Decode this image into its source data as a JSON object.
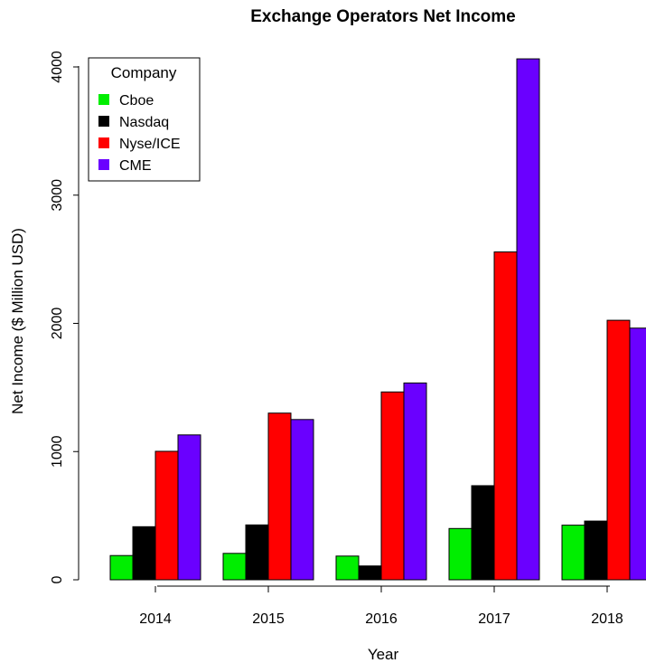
{
  "chart_data": {
    "type": "bar",
    "title": "Exchange Operators Net Income",
    "xlabel": "Year",
    "ylabel": "Net Income ($ Million USD)",
    "categories": [
      "2014",
      "2015",
      "2016",
      "2017",
      "2018"
    ],
    "ylim": [
      0,
      4100
    ],
    "yticks": [
      0,
      1000,
      2000,
      3000,
      4000
    ],
    "grid": false,
    "legend": {
      "title": "Company",
      "placement": "top-left"
    },
    "series": [
      {
        "name": "Cboe",
        "color": "#00ee00",
        "values": [
          189,
          206,
          185,
          400,
          426
        ]
      },
      {
        "name": "Nasdaq",
        "color": "#000000",
        "values": [
          414,
          428,
          108,
          734,
          458
        ]
      },
      {
        "name": "Nyse/ICE",
        "color": "#ff0000",
        "values": [
          1002,
          1300,
          1465,
          2557,
          2024
        ]
      },
      {
        "name": "CME",
        "color": "#6a00ff",
        "values": [
          1130,
          1250,
          1535,
          4063,
          1963
        ]
      }
    ]
  }
}
